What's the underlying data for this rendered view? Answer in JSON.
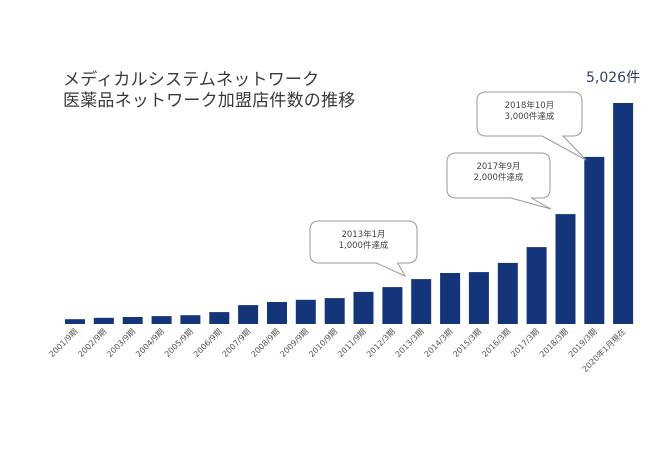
{
  "title": {
    "line1": "メディカルシステムネットワーク",
    "line2": "医薬品ネットワーク加盟店件数の推移"
  },
  "total_label": "5,026件",
  "colors": {
    "bar": "#14357a",
    "title": "#3a3a3a",
    "total_label": "#2e3f63"
  },
  "callouts": [
    {
      "line1": "2013年1月",
      "line2": "1,000件達成",
      "target": "2013/3期"
    },
    {
      "line1": "2017年9月",
      "line2": "2,000件達成",
      "target": "2018/3期"
    },
    {
      "line1": "2018年10月",
      "line2": "3,000件達成",
      "target": "2019/3期"
    }
  ],
  "chart_data": {
    "type": "bar",
    "title": "メディカルシステムネットワーク 医薬品ネットワーク加盟店件数の推移",
    "xlabel": "",
    "ylabel": "加盟店件数",
    "categories": [
      "2001/9期",
      "2002/9期",
      "2003/9期",
      "2004/9期",
      "2005/9期",
      "2006/9期",
      "2007/9期",
      "2008/9期",
      "2009/9期",
      "2010/9期",
      "2011/9期",
      "2012/3期",
      "2013/3期",
      "2014/3期",
      "2015/3期",
      "2016/3期",
      "2017/3期",
      "2018/3期",
      "2019/3期",
      "2020年1月現在"
    ],
    "values": [
      110,
      140,
      160,
      180,
      200,
      270,
      430,
      500,
      550,
      590,
      730,
      840,
      1020,
      1160,
      1180,
      1390,
      1750,
      2500,
      3800,
      5026
    ],
    "ylim": [
      0,
      5026
    ],
    "grid": false,
    "legend": "none",
    "annotations": [
      {
        "text": "2013年1月 1,000件達成",
        "x": "2013/3期"
      },
      {
        "text": "2017年9月 2,000件達成",
        "x": "2018/3期"
      },
      {
        "text": "2018年10月 3,000件達成",
        "x": "2019/3期"
      },
      {
        "text": "5,026件",
        "x": "2020年1月現在"
      }
    ]
  }
}
